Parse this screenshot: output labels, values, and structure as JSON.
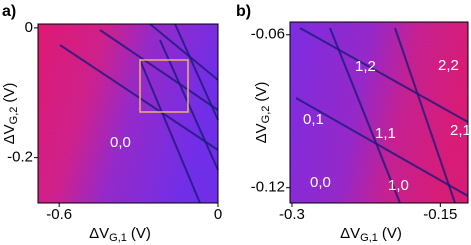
{
  "chart_data": [
    {
      "type": "heatmap",
      "label": "a)",
      "xlabel": {
        "symbol": "ΔV",
        "subscript": "G,1",
        "unit": "(V)"
      },
      "ylabel": {
        "symbol": "ΔV",
        "subscript": "G,2",
        "unit": "(V)"
      },
      "xlim": [
        -0.68,
        0
      ],
      "xticks": [
        -0.6,
        0
      ],
      "ylim": [
        -0.27,
        0.006
      ],
      "yticks": [
        -0.2,
        0
      ],
      "annotations": [
        "0,0"
      ]
    },
    {
      "type": "heatmap",
      "label": "b)",
      "xlabel": {
        "symbol": "ΔV",
        "subscript": "G,1",
        "unit": "(V)"
      },
      "ylabel": {
        "symbol": "ΔV",
        "subscript": "G,2",
        "unit": "(V)"
      },
      "xlim": [
        -0.302,
        -0.122
      ],
      "xticks": [
        -0.3,
        -0.15
      ],
      "ylim": [
        -0.126,
        -0.055
      ],
      "yticks": [
        -0.12,
        -0.06
      ],
      "annotations": [
        "1,2",
        "2,2",
        "0,1",
        "1,1",
        "2,1",
        "0,0",
        "1,0"
      ]
    }
  ]
}
